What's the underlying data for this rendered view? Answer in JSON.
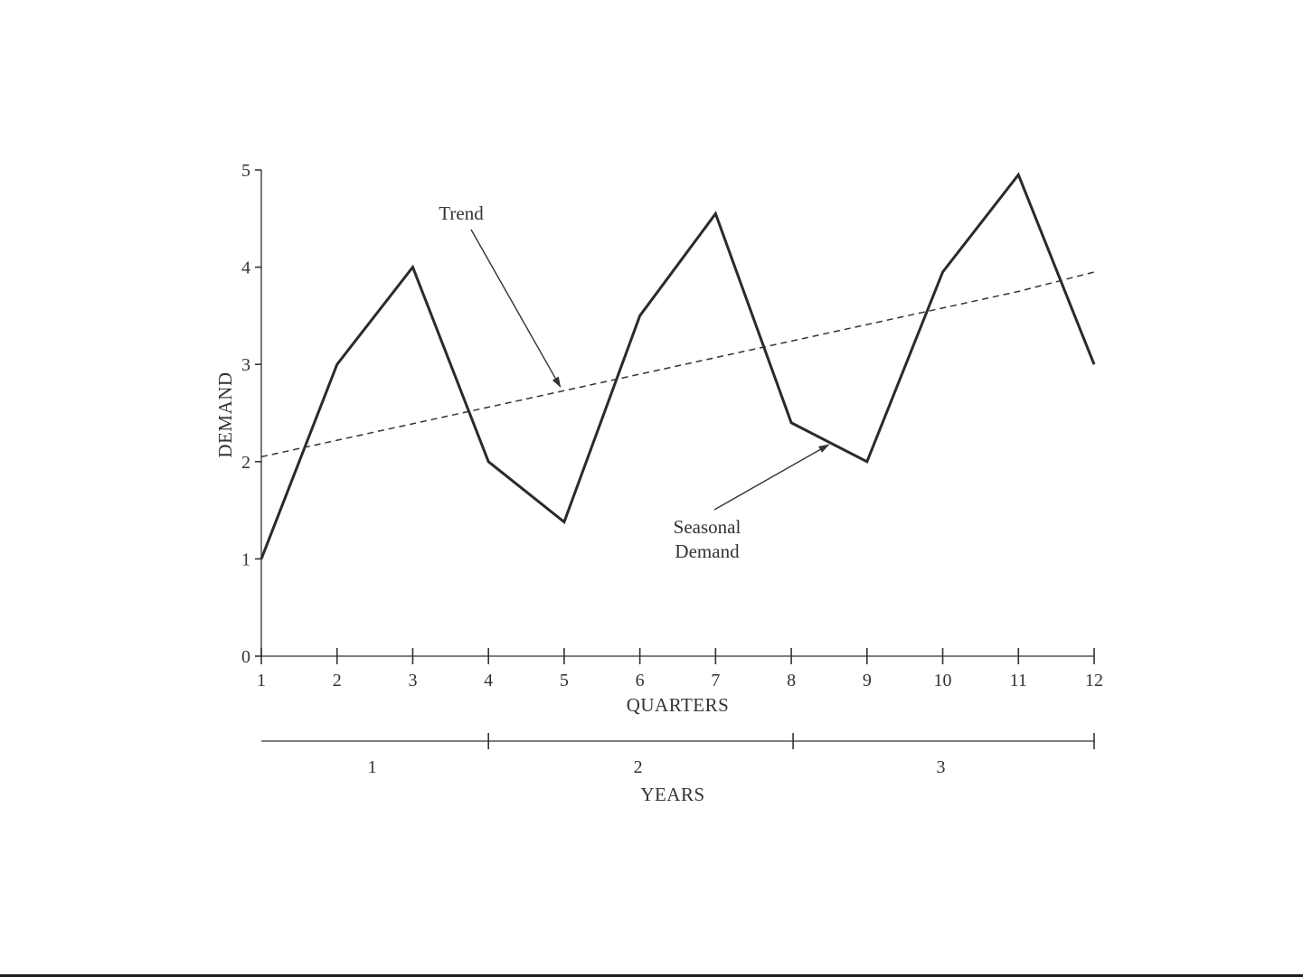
{
  "chart_data": {
    "type": "line",
    "xlabel": "QUARTERS",
    "ylabel": "DEMAND",
    "xlim": [
      1,
      12
    ],
    "ylim": [
      0,
      5
    ],
    "x": [
      1,
      2,
      3,
      4,
      5,
      6,
      7,
      8,
      9,
      10,
      11,
      12
    ],
    "y_ticks": [
      "0",
      "1",
      "2",
      "3",
      "4",
      "5"
    ],
    "x_ticks": [
      "1",
      "2",
      "3",
      "4",
      "5",
      "6",
      "7",
      "8",
      "9",
      "10",
      "11",
      "12"
    ],
    "grid": false,
    "series": [
      {
        "style": "solid",
        "color": "#2a2a2a",
        "values": [
          1.0,
          3.0,
          4.0,
          2.0,
          1.38,
          3.5,
          4.55,
          2.4,
          2.0,
          3.95,
          4.95,
          3.0
        ]
      },
      {
        "style": "dashed",
        "color": "#333333",
        "values": [
          2.05,
          2.22,
          2.39,
          2.56,
          2.73,
          2.9,
          3.07,
          3.24,
          3.41,
          3.58,
          3.75,
          3.95
        ]
      }
    ],
    "annotations": [
      {
        "label": "Trend",
        "series_index": 1,
        "points_to_x": 4.95
      },
      {
        "label": "Seasonal\nDemand",
        "series_index": 0,
        "points_to_x": 8.4
      }
    ],
    "secondary_axis": {
      "title": "YEARS",
      "boundaries_quarter": [
        1,
        4,
        8,
        12
      ],
      "labels": [
        "1",
        "2",
        "3"
      ]
    }
  }
}
